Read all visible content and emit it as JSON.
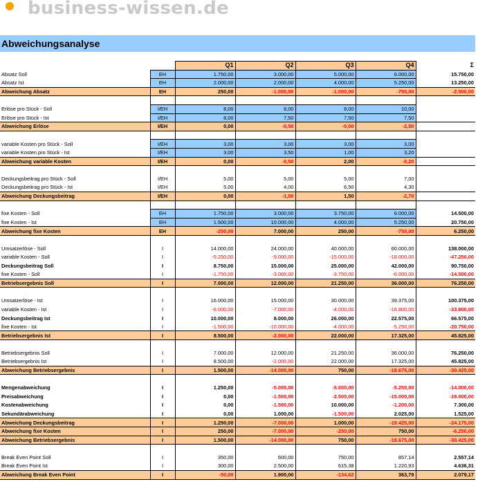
{
  "brand": {
    "logo_text": "business-wissen.de",
    "dot_color": "#f5a400"
  },
  "title": "Abweichungsanalyse",
  "colors": {
    "header": "#ffcc99",
    "input": "#99ccff",
    "negative": "#ff0000"
  },
  "header": {
    "q1": "Q1",
    "q2": "Q2",
    "q3": "Q3",
    "q4": "Q4",
    "sum": "Σ"
  },
  "rows": [
    {
      "label": "Absatz Soll",
      "unit": "EH",
      "q": [
        "1.750,00",
        "3.000,00",
        "5.000,00",
        "6.000,00"
      ],
      "sum": "15.750,00",
      "style": "input"
    },
    {
      "label": "Absatz Ist",
      "unit": "EH",
      "q": [
        "2.000,00",
        "2.000,00",
        "4.000,00",
        "5.250,00"
      ],
      "sum": "13.250,00",
      "style": "input"
    },
    {
      "label": "Abweichung Absatz",
      "unit": "EH",
      "q": [
        "250,00",
        "-1.000,00",
        "-1.000,00",
        "-750,00"
      ],
      "sum": "-2.500,00",
      "style": "dev"
    },
    {
      "style": "spacer"
    },
    {
      "label": "Erlöse pro Stück - Soll",
      "unit": "I/EH",
      "q": [
        "8,00",
        "8,00",
        "8,00",
        "10,00"
      ],
      "sum": "",
      "style": "input"
    },
    {
      "label": "Erlöse pro Stück - Ist",
      "unit": "I/EH",
      "q": [
        "8,00",
        "7,50",
        "7,50",
        "7,50"
      ],
      "sum": "",
      "style": "input"
    },
    {
      "label": "Abweichung Erlöse",
      "unit": "I/EH",
      "q": [
        "0,00",
        "-0,50",
        "-0,50",
        "-2,50"
      ],
      "sum": "",
      "style": "dev"
    },
    {
      "style": "spacer"
    },
    {
      "label": "variable Kosten pro Stück - Soll",
      "unit": "I/EH",
      "q": [
        "3,00",
        "3,00",
        "3,00",
        "3,00"
      ],
      "sum": "",
      "style": "input"
    },
    {
      "label": "variable Kosten pro Stück - Ist",
      "unit": "I/EH",
      "q": [
        "3,00",
        "3,50",
        "1,00",
        "3,20"
      ],
      "sum": "",
      "style": "input"
    },
    {
      "label": "Abweichung variable Kosten",
      "unit": "I/EH",
      "q": [
        "0,00",
        "-0,50",
        "2,00",
        "-0,20"
      ],
      "sum": "",
      "style": "dev"
    },
    {
      "style": "spacer"
    },
    {
      "label": "Deckungsbeitrag pro Stück - Soll",
      "unit": "I/EH",
      "q": [
        "5,00",
        "5,00",
        "5,00",
        "7,00"
      ],
      "sum": "",
      "style": "plain"
    },
    {
      "label": "Deckungsbeitrag pro Stück - Ist",
      "unit": "I/EH",
      "q": [
        "5,00",
        "4,00",
        "6,50",
        "4,30"
      ],
      "sum": "",
      "style": "plain"
    },
    {
      "label": "Abweichung Deckungsbeitrag",
      "unit": "I/EH",
      "q": [
        "0,00",
        "-1,00",
        "1,50",
        "-2,70"
      ],
      "sum": "",
      "style": "dev"
    },
    {
      "style": "spacer"
    },
    {
      "label": "fixe Kosten - Soll",
      "unit": "EH",
      "q": [
        "1.750,00",
        "3.000,00",
        "3.750,00",
        "6.000,00"
      ],
      "sum": "14.500,00",
      "style": "input"
    },
    {
      "label": "fixe Kosten - Ist",
      "unit": "EH",
      "q": [
        "1.500,00",
        "10.000,00",
        "4.000,00",
        "5.250,00"
      ],
      "sum": "20.750,00",
      "style": "input"
    },
    {
      "label": "Abweichung fixe Kosten",
      "unit": "EH",
      "q": [
        "-250,00",
        "7.000,00",
        "250,00",
        "-750,00"
      ],
      "sum": "6.250,00",
      "style": "dev"
    },
    {
      "style": "spacer"
    },
    {
      "label": "Umsatzerlöse - Soll",
      "unit": "I",
      "q": [
        "14.000,00",
        "24.000,00",
        "40.000,00",
        "60.000,00"
      ],
      "sum": "138.000,00",
      "style": "plain"
    },
    {
      "label": "variable Kosten - Soll",
      "unit": "I",
      "q": [
        "-5.250,00",
        "-9.000,00",
        "-15.000,00",
        "-18.000,00"
      ],
      "sum": "-47.250,00",
      "style": "plain"
    },
    {
      "label": "Deckungsbeitrag Soll",
      "unit": "I",
      "q": [
        "8.750,00",
        "15.000,00",
        "25.000,00",
        "42.000,00"
      ],
      "sum": "90.750,00",
      "style": "bold"
    },
    {
      "label": "fixe Kosten - Soll",
      "unit": "I",
      "q": [
        "-1.750,00",
        "-3.000,00",
        "-3.750,00",
        "-6.000,00"
      ],
      "sum": "-14.500,00",
      "style": "plain"
    },
    {
      "label": "Betriebsergebnis Soll",
      "unit": "I",
      "q": [
        "7.000,00",
        "12.000,00",
        "21.250,00",
        "36.000,00"
      ],
      "sum": "76.250,00",
      "style": "dev"
    },
    {
      "style": "spacer"
    },
    {
      "label": "Umsatzerlöse - Ist",
      "unit": "I",
      "q": [
        "16.000,00",
        "15.000,00",
        "30.000,00",
        "39.375,00"
      ],
      "sum": "100.375,00",
      "style": "plain"
    },
    {
      "label": "variable Kosten - Ist",
      "unit": "I",
      "q": [
        "-6.000,00",
        "-7.000,00",
        "-4.000,00",
        "-16.800,00"
      ],
      "sum": "-33.800,00",
      "style": "plain"
    },
    {
      "label": "Deckungsbeitrag Ist",
      "unit": "I",
      "q": [
        "10.000,00",
        "8.000,00",
        "26.000,00",
        "22.575,00"
      ],
      "sum": "66.575,00",
      "style": "bold"
    },
    {
      "label": "fixe Kosten - Ist",
      "unit": "I",
      "q": [
        "-1.500,00",
        "-10.000,00",
        "-4.000,00",
        "-5.250,00"
      ],
      "sum": "-20.750,00",
      "style": "plain"
    },
    {
      "label": "Betriebsergebnis Ist",
      "unit": "I",
      "q": [
        "8.500,00",
        "-2.000,00",
        "22.000,00",
        "17.325,00"
      ],
      "sum": "45.825,00",
      "style": "dev"
    },
    {
      "style": "spacer"
    },
    {
      "label": "Betriebsergebnis Soll",
      "unit": "I",
      "q": [
        "7.000,00",
        "12.000,00",
        "21.250,00",
        "36.000,00"
      ],
      "sum": "76.250,00",
      "style": "plain"
    },
    {
      "label": "Betriebsergebnis Ist",
      "unit": "I",
      "q": [
        "8.500,00",
        "-2.000,00",
        "22.000,00",
        "17.325,00"
      ],
      "sum": "45.825,00",
      "style": "plain"
    },
    {
      "label": "Abweichung Betriebsergebnis",
      "unit": "I",
      "q": [
        "1.500,00",
        "-14.000,00",
        "750,00",
        "-18.675,00"
      ],
      "sum": "-30.425,00",
      "style": "dev"
    },
    {
      "style": "spacer"
    },
    {
      "label": "Mengenabweichung",
      "unit": "I",
      "q": [
        "1.250,00",
        "-5.000,00",
        "-5.000,00",
        "-5.250,00"
      ],
      "sum": "-14.000,00",
      "style": "bold"
    },
    {
      "label": "Preisabweichung",
      "unit": "I",
      "q": [
        "0,00",
        "-1.500,00",
        "-2.500,00",
        "-15.000,00"
      ],
      "sum": "-19.000,00",
      "style": "bold"
    },
    {
      "label": "Kostenabweichung",
      "unit": "I",
      "q": [
        "0,00",
        "-1.500,00",
        "10.000,00",
        "-1.200,00"
      ],
      "sum": "7.300,00",
      "style": "bold"
    },
    {
      "label": "Sekundärabweichung",
      "unit": "I",
      "q": [
        "0,00",
        "1.000,00",
        "-1.500,00",
        "2.025,00"
      ],
      "sum": "1.525,00",
      "style": "bold"
    },
    {
      "label": "Abweichung Deckungsbeitrag",
      "unit": "I",
      "q": [
        "1.250,00",
        "-7.000,00",
        "1.000,00",
        "-19.425,00"
      ],
      "sum": "-24.175,00",
      "style": "dev"
    },
    {
      "label": "Abweichung fixe Kosten",
      "unit": "I",
      "q": [
        "250,00",
        "-7.000,00",
        "-250,00",
        "750,00"
      ],
      "sum": "-6.250,00",
      "style": "dev"
    },
    {
      "label": "Abweichung Betriebsergebnis",
      "unit": "I",
      "q": [
        "1.500,00",
        "-14.000,00",
        "750,00",
        "-18.675,00"
      ],
      "sum": "-30.425,00",
      "style": "dev"
    },
    {
      "style": "spacer"
    },
    {
      "label": "Break Even Point Soll",
      "unit": "I",
      "q": [
        "350,00",
        "600,00",
        "750,00",
        "857,14"
      ],
      "sum": "2.557,14",
      "style": "plain"
    },
    {
      "label": "Break Even Point Ist",
      "unit": "I",
      "q": [
        "300,00",
        "2.500,00",
        "615,38",
        "1.220,93"
      ],
      "sum": "4.636,31",
      "style": "plain"
    },
    {
      "label": "Abweichung Break Even Point",
      "unit": "I",
      "q": [
        "-50,00",
        "1.900,00",
        "-134,62",
        "363,79"
      ],
      "sum": "2.079,17",
      "style": "dev"
    }
  ]
}
